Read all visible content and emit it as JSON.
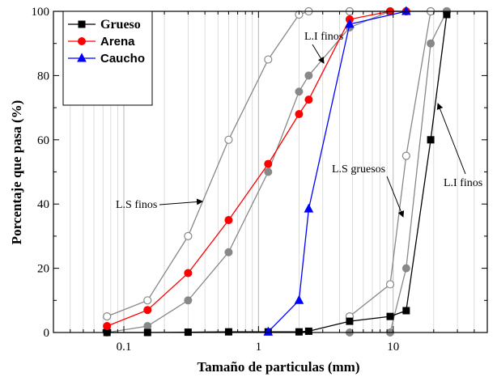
{
  "chart_data": {
    "type": "line",
    "xlabel": "Tamaño de particulas (mm)",
    "ylabel": "Porcentaje que pasa (%)",
    "x_scale": "log",
    "xlim": [
      0.03,
      50
    ],
    "ylim": [
      0,
      100
    ],
    "x_ticks": [
      0.1,
      1,
      10
    ],
    "x_tick_labels": [
      "0.1",
      "1",
      "10"
    ],
    "y_ticks": [
      0,
      20,
      40,
      60,
      80,
      100
    ],
    "y_tick_labels": [
      "0",
      "20",
      "40",
      "60",
      "80",
      "100"
    ],
    "grid_x": true,
    "grid_y": false,
    "legend_position": "top-left",
    "series": [
      {
        "name": "Grueso",
        "color": "#000000",
        "marker": "square-filled",
        "x": [
          0.075,
          0.15,
          0.3,
          0.6,
          1.18,
          2.0,
          2.36,
          4.75,
          9.5,
          12.5,
          19,
          25
        ],
        "y": [
          0,
          0,
          0.1,
          0.2,
          0.2,
          0.2,
          0.4,
          3.5,
          5,
          6.8,
          60,
          99
        ]
      },
      {
        "name": "Arena",
        "color": "#ff0000",
        "marker": "circle-filled",
        "x": [
          0.075,
          0.15,
          0.3,
          0.6,
          1.18,
          2.0,
          2.36,
          4.75,
          9.5,
          12.5
        ],
        "y": [
          2,
          7,
          18.5,
          35,
          52.5,
          68,
          72.5,
          97.5,
          100,
          100
        ]
      },
      {
        "name": "Caucho",
        "color": "#0000ff",
        "marker": "triangle-filled",
        "x": [
          1.18,
          2.0,
          2.36,
          4.75,
          12.5
        ],
        "y": [
          0.2,
          10,
          38.5,
          96,
          100
        ]
      }
    ],
    "limit_curves": [
      {
        "label": "L.S finos",
        "color": "#888888",
        "marker": "circle-open",
        "x": [
          0.075,
          0.15,
          0.3,
          0.6,
          1.18,
          2.0,
          2.36,
          4.75,
          9.5,
          12.5,
          19,
          25
        ],
        "y": [
          5,
          10,
          30,
          60,
          85,
          99,
          100,
          100,
          100,
          100,
          100,
          100
        ]
      },
      {
        "label": "L.I finos",
        "color": "#888888",
        "marker": "circle-filled",
        "x": [
          0.075,
          0.15,
          0.3,
          0.6,
          1.18,
          2.0,
          2.36,
          4.75,
          9.5,
          12.5,
          19,
          25
        ],
        "y": [
          0,
          2,
          10,
          25,
          50,
          75,
          80,
          95,
          100,
          100,
          100,
          100
        ]
      },
      {
        "label": "L.S gruesos",
        "color": "#888888",
        "marker": "circle-open",
        "x": [
          4.75,
          9.5,
          12.5,
          19,
          25
        ],
        "y": [
          5,
          15,
          55,
          100,
          100
        ]
      },
      {
        "label": "L.I finos",
        "color": "#888888",
        "marker": "circle-filled",
        "x": [
          4.75,
          9.5,
          12.5,
          19,
          25
        ],
        "y": [
          0,
          0,
          20,
          90,
          100
        ]
      }
    ],
    "annotations": [
      "L.I finos",
      "L.S finos",
      "L.S gruesos",
      "L.I finos"
    ]
  }
}
